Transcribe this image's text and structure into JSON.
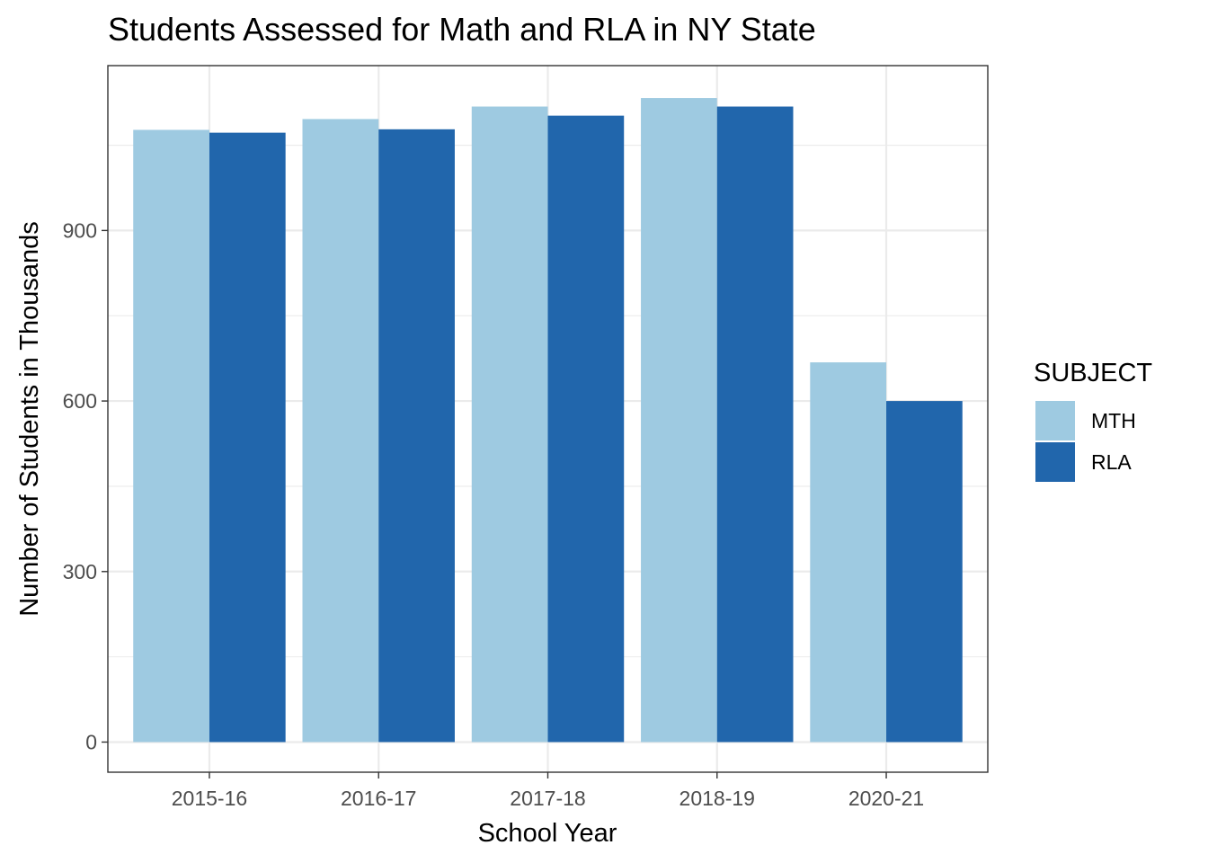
{
  "chart_data": {
    "type": "bar",
    "title": "Students Assessed for Math and RLA in NY State",
    "xlabel": "School Year",
    "ylabel": "Number of Students in Thousands",
    "categories": [
      "2015-16",
      "2016-17",
      "2017-18",
      "2018-19",
      "2020-21"
    ],
    "series": [
      {
        "name": "MTH",
        "color": "#9ECAE1",
        "values": [
          1077,
          1096,
          1118,
          1133,
          668
        ]
      },
      {
        "name": "RLA",
        "color": "#2166AC",
        "values": [
          1072,
          1078,
          1102,
          1118,
          600
        ]
      }
    ],
    "ylim": [
      -53,
      1190
    ],
    "yticks": [
      0,
      300,
      600,
      900
    ],
    "legend": {
      "title": "SUBJECT",
      "placement": "right"
    },
    "grid": true
  }
}
